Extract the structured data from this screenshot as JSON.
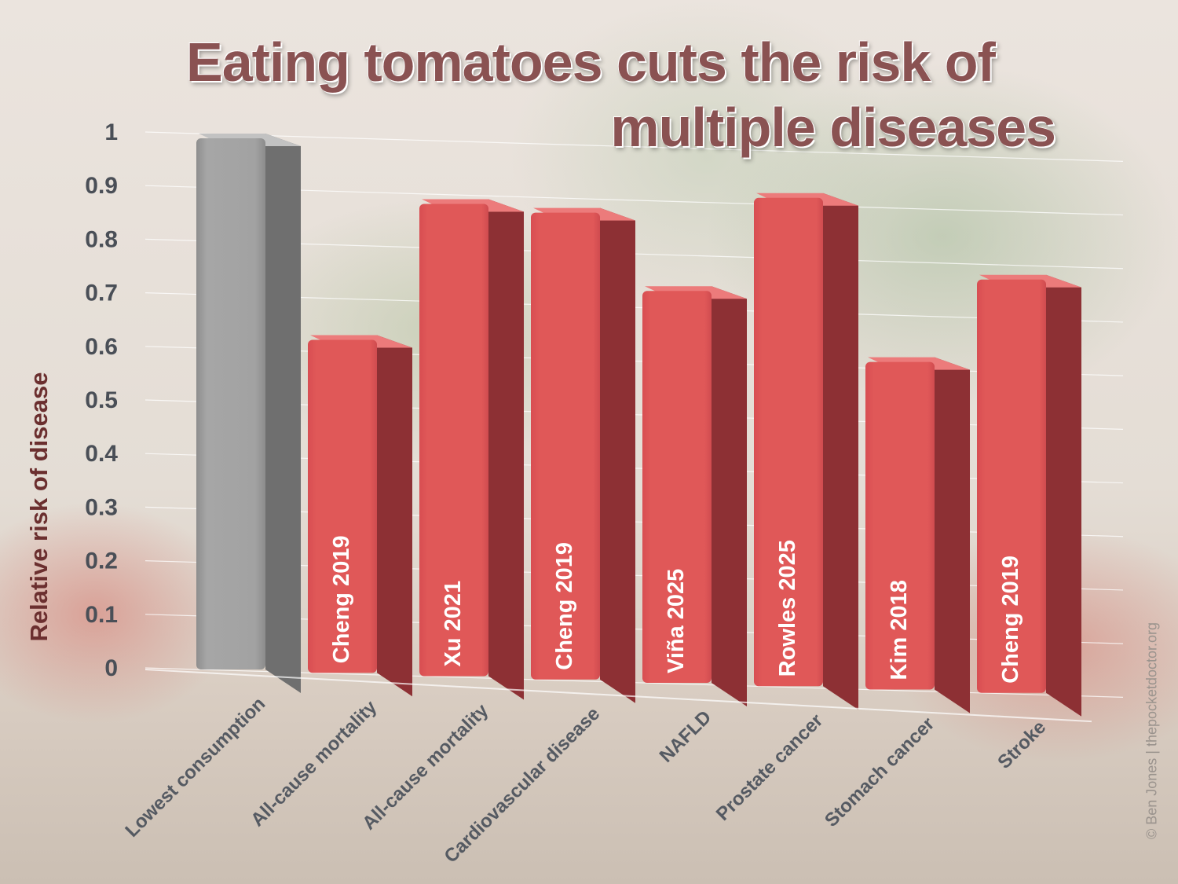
{
  "chart_data": {
    "type": "bar",
    "title": "Eating tomatoes cuts the risk of multiple diseases",
    "title_lines": [
      "Eating tomatoes cuts the risk of",
      "multiple diseases"
    ],
    "xlabel": "",
    "ylabel": "Relative risk of disease",
    "ylim": [
      0,
      1
    ],
    "yticks": [
      "0",
      "0.1",
      "0.2",
      "0.3",
      "0.4",
      "0.5",
      "0.6",
      "0.7",
      "0.8",
      "0.9",
      "1"
    ],
    "grid": true,
    "categories": [
      "Lowest consumption",
      "All-cause mortality",
      "All-cause mortality",
      "Cardiovascular disease",
      "NAFLD",
      "Prostate cancer",
      "Stomach cancer",
      "Stroke"
    ],
    "values": [
      1.0,
      0.63,
      0.89,
      0.88,
      0.74,
      0.92,
      0.62,
      0.78
    ],
    "bar_labels": [
      "",
      "Cheng 2019",
      "Xu 2021",
      "Cheng 2019",
      "Viña 2025",
      "Rowles 2025",
      "Kim 2018",
      "Cheng 2019"
    ],
    "colors": {
      "reference": "#9a9a9a",
      "reference_side": "#6f6f6f",
      "bars": "#e05858",
      "bars_side": "#8d3034",
      "title": "#8a5252",
      "ylabel": "#6b2f2f",
      "ticks": "#4a4f57"
    }
  },
  "credit": "© Ben Jones | thepocketdoctor.org"
}
